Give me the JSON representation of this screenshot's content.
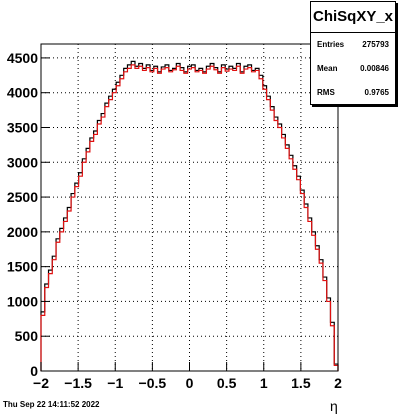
{
  "chart_data": {
    "type": "histogram",
    "title": "ChiSqXY_x",
    "xlabel": "η",
    "ylabel": "",
    "xlim": [
      -2,
      2
    ],
    "ylim": [
      0,
      4700
    ],
    "grid": true,
    "xticks": [
      "−2",
      "−1.5",
      "−1",
      "−0.5",
      "0",
      "0.5",
      "1",
      "1.5",
      "2"
    ],
    "yticks": [
      "0",
      "500",
      "1000",
      "1500",
      "2000",
      "2500",
      "3000",
      "3500",
      "4000",
      "4500"
    ],
    "bin_edges_range": [
      -2,
      2
    ],
    "series": [
      {
        "color": "#000000",
        "values": [
          850,
          1250,
          1450,
          1650,
          1900,
          2050,
          2200,
          2350,
          2550,
          2700,
          2850,
          3050,
          3200,
          3350,
          3450,
          3600,
          3700,
          3850,
          3950,
          4050,
          4150,
          4250,
          4350,
          4400,
          4450,
          4380,
          4420,
          4350,
          4400,
          4320,
          4380,
          4300,
          4370,
          4400,
          4320,
          4350,
          4420,
          4360,
          4300,
          4380,
          4400,
          4320,
          4350,
          4300,
          4380,
          4420,
          4360,
          4300,
          4400,
          4340,
          4380,
          4350,
          4420,
          4300,
          4380,
          4400,
          4320,
          4350,
          4250,
          4100,
          3950,
          3800,
          3650,
          3550,
          3400,
          3250,
          3100,
          2950,
          2800,
          2600,
          2400,
          2200,
          2000,
          1800,
          1600,
          1350,
          1050,
          700,
          100
        ]
      },
      {
        "color": "#e01010",
        "values": [
          800,
          1200,
          1400,
          1600,
          1850,
          2000,
          2150,
          2300,
          2500,
          2650,
          2800,
          3000,
          3150,
          3300,
          3400,
          3550,
          3650,
          3800,
          3900,
          4000,
          4100,
          4200,
          4300,
          4350,
          4400,
          4350,
          4380,
          4320,
          4360,
          4300,
          4350,
          4280,
          4340,
          4360,
          4300,
          4330,
          4380,
          4320,
          4280,
          4340,
          4360,
          4300,
          4320,
          4280,
          4340,
          4380,
          4330,
          4280,
          4360,
          4310,
          4340,
          4320,
          4380,
          4280,
          4340,
          4360,
          4300,
          4320,
          4200,
          4050,
          3900,
          3750,
          3600,
          3500,
          3350,
          3200,
          3050,
          2900,
          2750,
          2550,
          2350,
          2150,
          1950,
          1750,
          1550,
          1300,
          1000,
          650,
          80
        ]
      }
    ]
  },
  "stats": {
    "entries_label": "Entries",
    "entries_value": "275793",
    "mean_label": "Mean",
    "mean_value": "0.00846",
    "rms_label": "RMS",
    "rms_value": "0.9765"
  },
  "footer": {
    "timestamp": "Thu Sep 22 14:11:52 2022"
  }
}
